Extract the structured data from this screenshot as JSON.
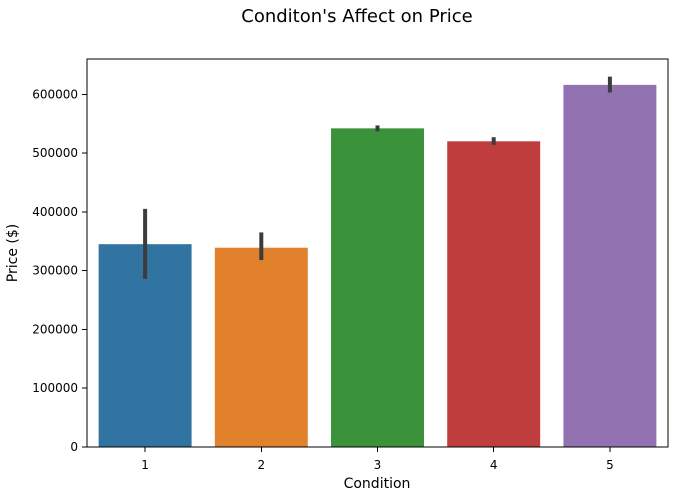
{
  "chart_data": {
    "type": "bar",
    "title": "Conditon's Affect on Price",
    "xlabel": "Condition",
    "ylabel": "Price ($)",
    "categories": [
      "1",
      "2",
      "3",
      "4",
      "5"
    ],
    "values": [
      345000,
      339000,
      542000,
      520000,
      616000
    ],
    "error_bars": [
      [
        286000,
        405000
      ],
      [
        318000,
        365000
      ],
      [
        537000,
        547000
      ],
      [
        514000,
        527000
      ],
      [
        603000,
        630000
      ]
    ],
    "colors": [
      "#3274a1",
      "#e1812c",
      "#3a923a",
      "#c03d3e",
      "#9372b2"
    ],
    "error_color": "#3c3c3c",
    "ylim": [
      0,
      660000
    ],
    "yticks": [
      0,
      100000,
      200000,
      300000,
      400000,
      500000,
      600000
    ],
    "ytick_labels": [
      "0",
      "100000",
      "200000",
      "300000",
      "400000",
      "500000",
      "600000"
    ],
    "grid": false,
    "legend": "none"
  }
}
